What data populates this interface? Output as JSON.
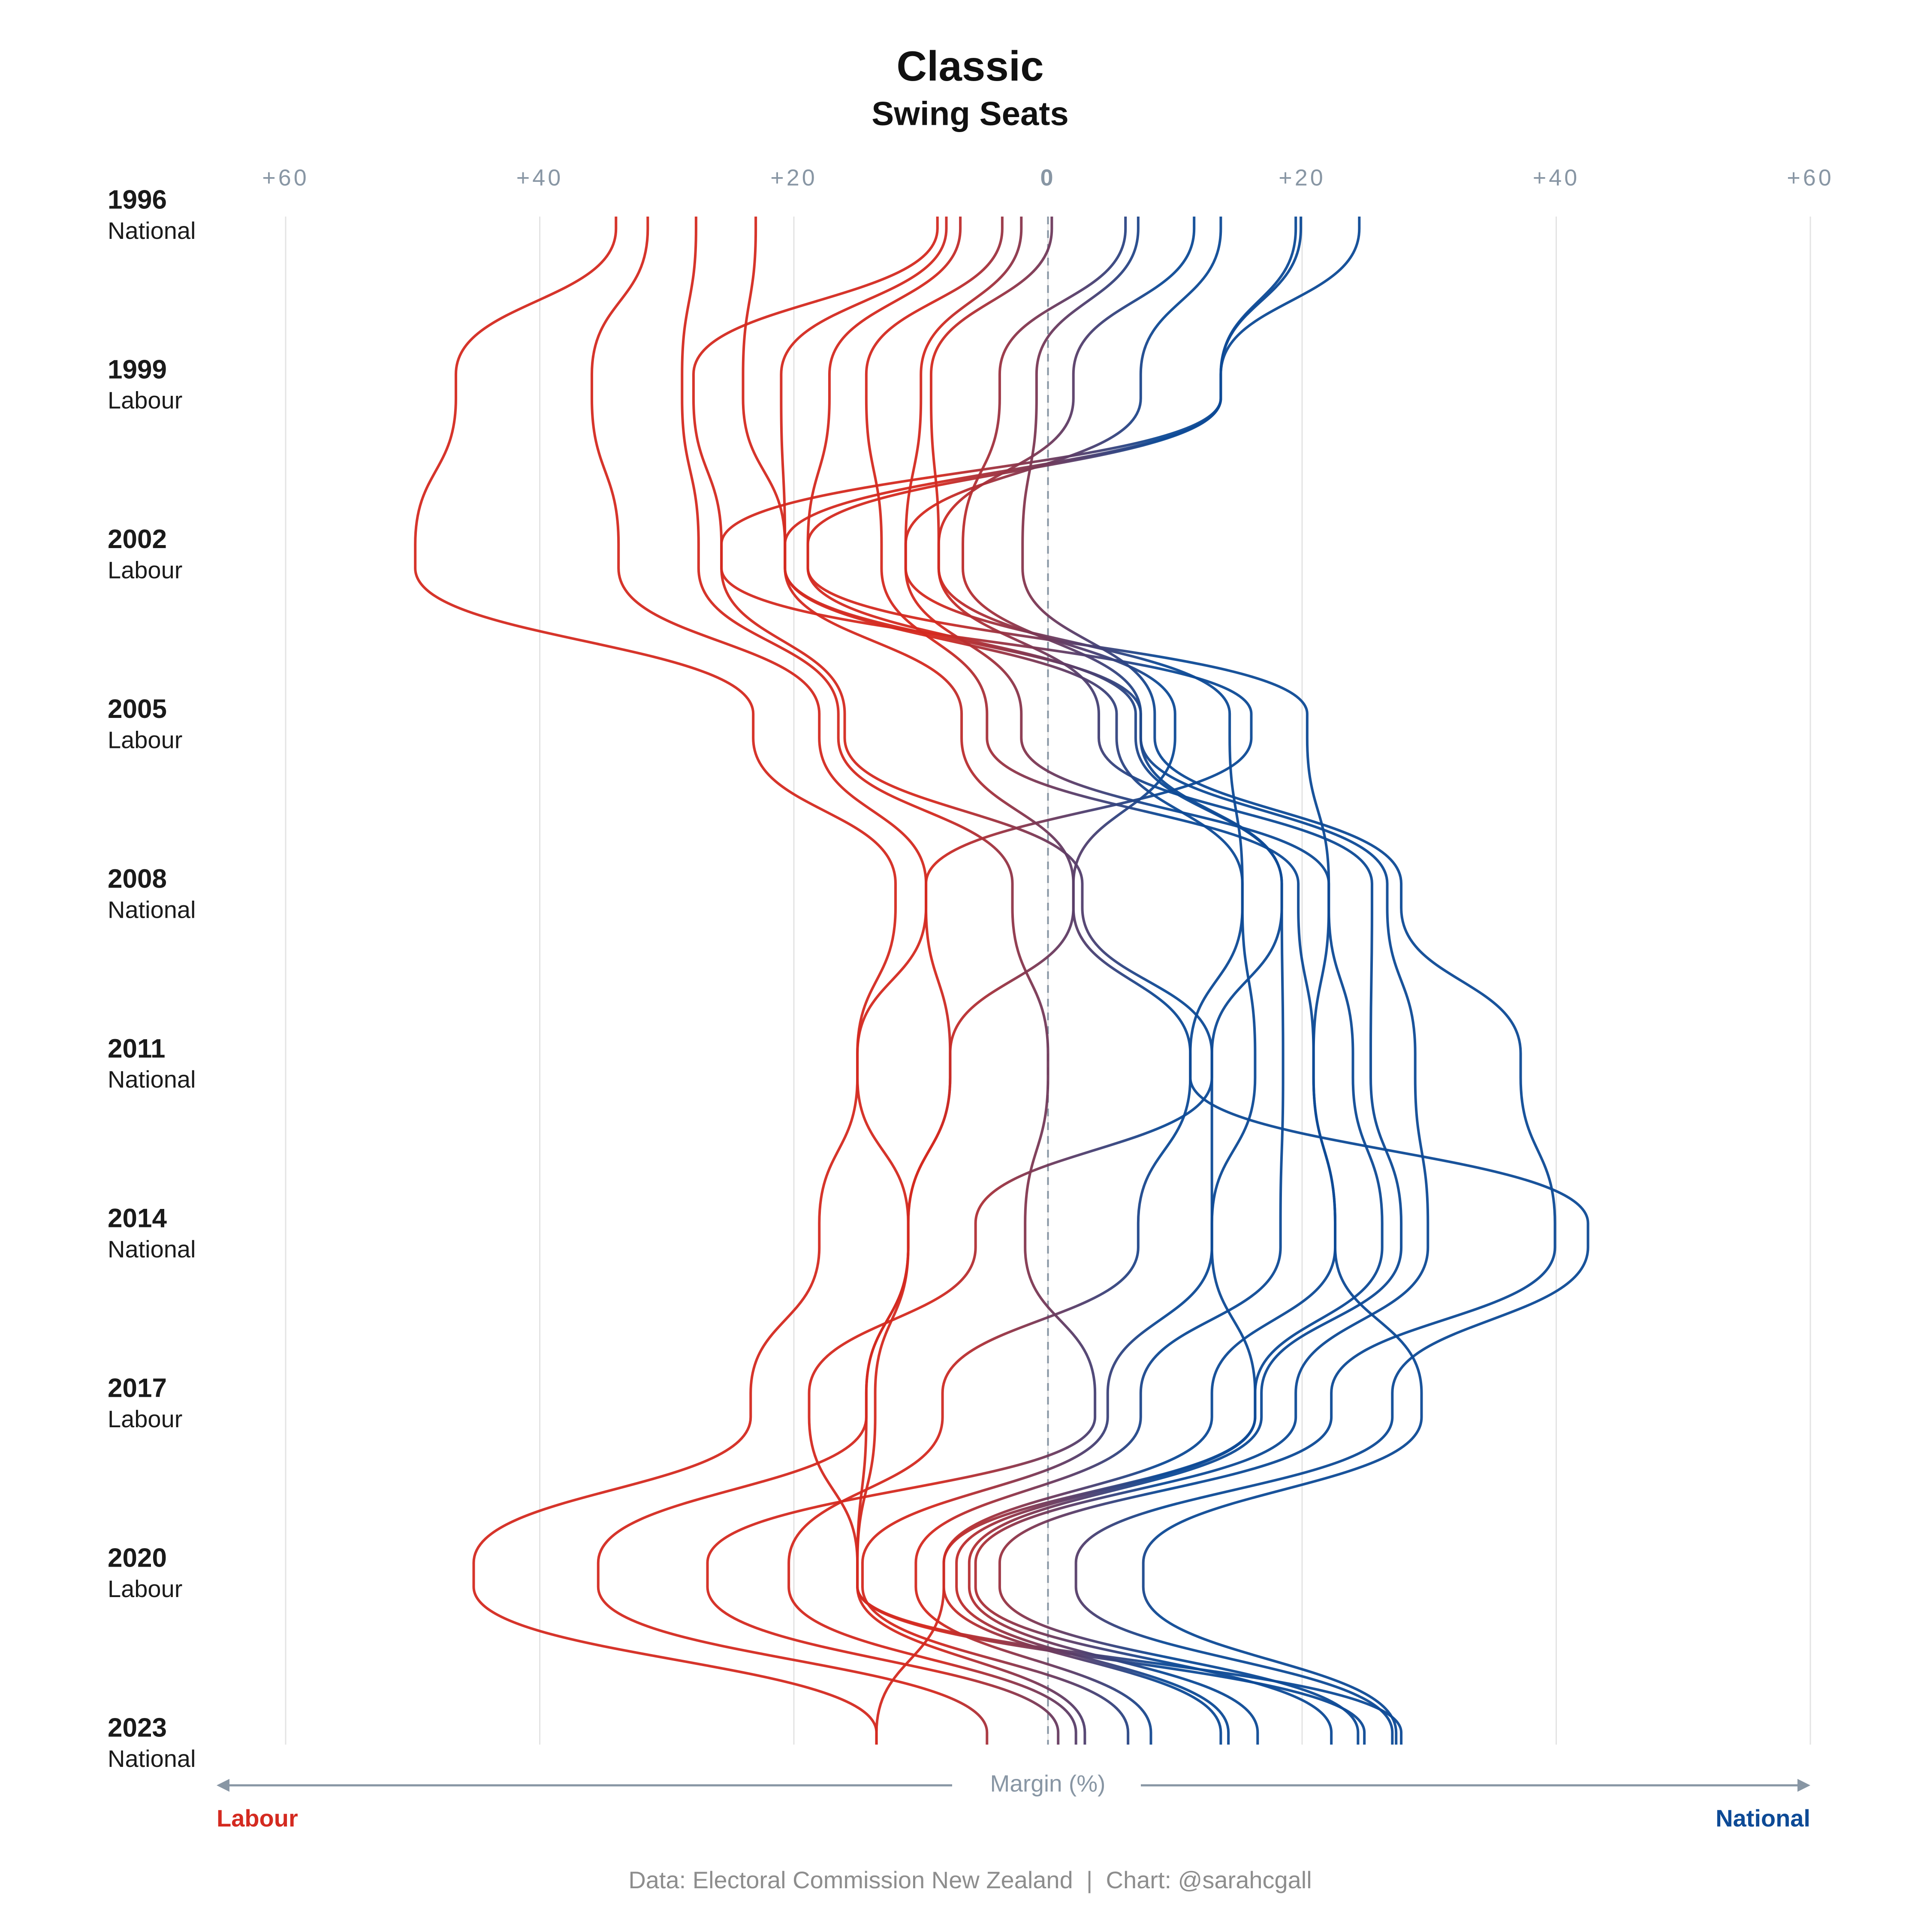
{
  "chart_data": {
    "type": "line",
    "title": "Classic",
    "subtitle": "Swing Seats",
    "categories": [
      "1996",
      "1999",
      "2002",
      "2005",
      "2008",
      "2011",
      "2014",
      "2017",
      "2020",
      "2023"
    ],
    "winners": [
      "National",
      "Labour",
      "Labour",
      "Labour",
      "National",
      "National",
      "National",
      "Labour",
      "Labour",
      "National"
    ],
    "xlabel": "Margin (%)",
    "x_left_label": "Labour",
    "x_right_label": "National",
    "left_color": "#d42a20",
    "right_color": "#0d4a96",
    "xlim": [
      -60,
      60
    ],
    "xticks": [
      {
        "value": -60,
        "label": "+60"
      },
      {
        "value": -40,
        "label": "+40"
      },
      {
        "value": -20,
        "label": "+20"
      },
      0,
      {
        "value": 20,
        "label": "+20"
      },
      {
        "value": 40,
        "label": "+40"
      },
      {
        "value": 60,
        "label": "+60"
      }
    ],
    "grid": true,
    "zero_line": true,
    "series": [
      {
        "values": [
          -34,
          -46.6,
          -49.8,
          -23.2,
          -12,
          -15,
          -18,
          -23.4,
          -45.2,
          -13.5
        ]
      },
      {
        "values": [
          -31.5,
          -35.9,
          -33.8,
          -18,
          -9.6,
          -7.7,
          -11,
          -14.3,
          -35.4,
          -4.8
        ]
      },
      {
        "values": [
          -27.7,
          -28.8,
          -27.5,
          -16.5,
          -2.8,
          0,
          -1.8,
          3.7,
          -26.8,
          0.8
        ]
      },
      {
        "values": [
          -23,
          -24,
          -20.7,
          -6.8,
          2,
          11.2,
          7.1,
          -8.3,
          -20.4,
          2.2
        ]
      },
      {
        "values": [
          -8.7,
          -27.9,
          -25.7,
          -16,
          2.7,
          12.9,
          -5.7,
          -18.8,
          -15,
          2.9
        ]
      },
      {
        "values": [
          -8,
          -21,
          -20.7,
          5.4,
          15.3,
          16.3,
          12.9,
          4.7,
          -14.6,
          6.3
        ]
      },
      {
        "values": [
          -6.9,
          -17.2,
          -18.9,
          6.9,
          18.4,
          18.5,
          18.3,
          7.3,
          -10.4,
          8.1
        ]
      },
      {
        "values": [
          -3.6,
          -14.3,
          -13.1,
          -4.8,
          19.7,
          20.9,
          22.6,
          12.9,
          -8.2,
          13.6
        ]
      },
      {
        "values": [
          -2.1,
          -10,
          -11.2,
          -2.1,
          22.1,
          24,
          26.3,
          16.3,
          -7.2,
          14.2
        ]
      },
      {
        "values": [
          0.3,
          -9.2,
          -8.6,
          4,
          25.5,
          25.4,
          27.8,
          16.8,
          -6.2,
          16.5
        ]
      },
      {
        "values": [
          6.1,
          -3.8,
          -6.7,
          7.3,
          26.7,
          28.9,
          29.9,
          19.5,
          -5.7,
          22.3
        ]
      },
      {
        "values": [
          7.1,
          -0.9,
          -2,
          8.4,
          27.8,
          37.2,
          39.9,
          22.3,
          -3.8,
          24.4
        ]
      },
      {
        "values": [
          11.5,
          2,
          -8.6,
          10,
          2,
          -7.7,
          -11,
          -13.6,
          -15,
          24.9
        ]
      },
      {
        "values": [
          13.6,
          7.3,
          -11.2,
          14.3,
          15.3,
          11.2,
          42.5,
          27.1,
          2.2,
          27.1
        ]
      },
      {
        "values": [
          19.5,
          13.6,
          -18.9,
          20.4,
          22.1,
          20.9,
          22.6,
          29.4,
          7.5,
          27.4
        ]
      },
      {
        "values": [
          19.9,
          13.6,
          -25.7,
          16,
          -9.6,
          -15,
          -11,
          -14.3,
          -15,
          27.8
        ]
      },
      {
        "values": [
          24.5,
          13.6,
          -20.7,
          7.3,
          18.4,
          12.9,
          12.9,
          16.3,
          -8.2,
          -13.5
        ]
      }
    ],
    "source": "Data: Electoral Commission New Zealand  |  Chart: @sarahcgall"
  }
}
